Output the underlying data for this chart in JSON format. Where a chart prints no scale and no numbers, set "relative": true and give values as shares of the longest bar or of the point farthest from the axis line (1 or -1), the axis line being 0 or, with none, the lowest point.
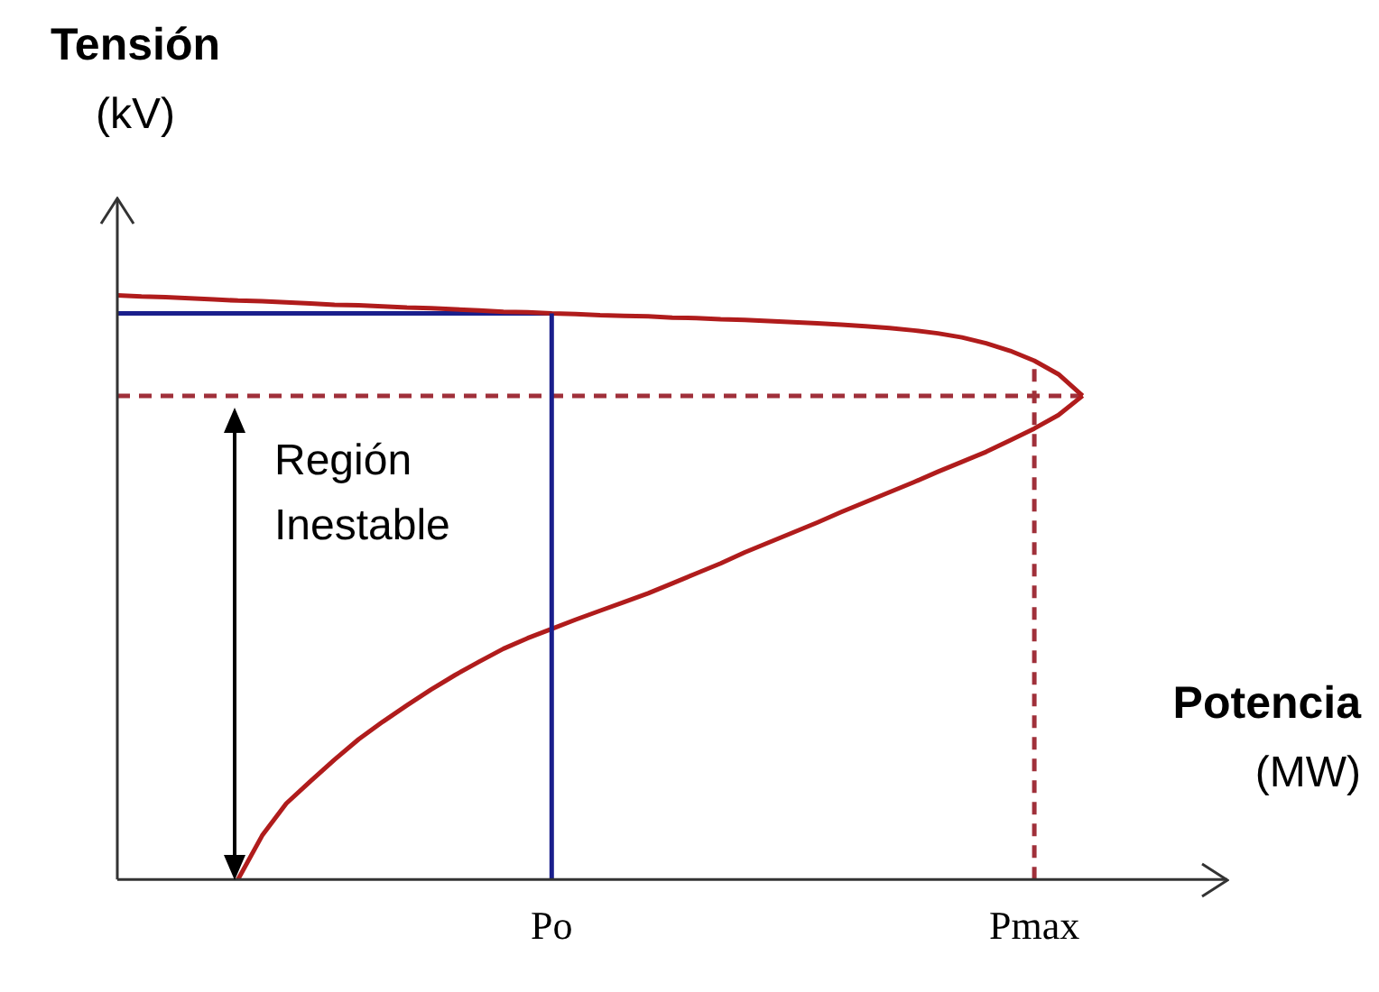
{
  "chart_data": {
    "type": "line",
    "relative": true,
    "ylabel": "Tensión\n(kV)",
    "xlabel": "Potencia\n(MW)",
    "annotations": [
      "Región\nInestable"
    ],
    "marker": "none",
    "categories": [
      null,
      null,
      null,
      null,
      null,
      null,
      null,
      null,
      null,
      null,
      null,
      null,
      null,
      null,
      null,
      null,
      null,
      null,
      "Po",
      null,
      null,
      null,
      null,
      null,
      null,
      null,
      null,
      null,
      null,
      null,
      null,
      null,
      null,
      null,
      null,
      null,
      null,
      null,
      "Pmax",
      null,
      null,
      null,
      null,
      null,
      null,
      null,
      null
    ],
    "ref_lines": [
      {
        "axis": "x",
        "value": "Po",
        "color": "#1a1f8c",
        "line_style": "solid"
      },
      {
        "axis": "x",
        "value": "Pmax",
        "color": "#a0303a",
        "line_style": "dashed"
      }
    ],
    "series": [
      {
        "color": "#b01c1c",
        "line_style": "solid",
        "values": [
          null,
          null,
          null,
          null,
          null,
          0,
          0.075,
          0.13,
          0.168,
          0.205,
          0.24,
          0.27,
          0.298,
          0.325,
          0.35,
          0.373,
          0.395,
          0.413,
          0.429,
          0.445,
          0.46,
          0.475,
          0.49,
          0.507,
          0.524,
          0.541,
          0.56,
          0.577,
          0.594,
          0.611,
          0.629,
          0.646,
          0.663,
          0.68,
          0.698,
          0.715,
          0.732,
          0.752,
          0.772,
          0.795,
          0.828,
          null,
          null,
          null,
          null,
          null,
          null
        ]
      },
      {
        "color": "#b01c1c",
        "line_style": "solid",
        "values": [
          1,
          0.998,
          0.997,
          0.995,
          0.993,
          0.991,
          0.99,
          0.988,
          0.986,
          0.984,
          0.983,
          0.981,
          0.979,
          0.978,
          0.976,
          0.974,
          0.972,
          0.971,
          0.969,
          0.968,
          0.966,
          0.965,
          0.964,
          0.962,
          0.961,
          0.959,
          0.958,
          0.956,
          0.954,
          0.952,
          0.95,
          0.947,
          0.944,
          0.94,
          0.935,
          0.928,
          0.918,
          0.905,
          0.888,
          0.865,
          0.828,
          null,
          null,
          null,
          null,
          null,
          null
        ]
      },
      {
        "color": "#1a1f8c",
        "line_style": "solid",
        "values": [
          0.969,
          0.969,
          0.969,
          0.969,
          0.969,
          0.969,
          0.969,
          0.969,
          0.969,
          0.969,
          0.969,
          0.969,
          0.969,
          0.969,
          0.969,
          0.969,
          0.969,
          0.969,
          0.969,
          null,
          null,
          null,
          null,
          null,
          null,
          null,
          null,
          null,
          null,
          null,
          null,
          null,
          null,
          null,
          null,
          null,
          null,
          null,
          null,
          null,
          null,
          null,
          null,
          null,
          null,
          null,
          null
        ]
      },
      {
        "color": "#a0303a",
        "line_style": "dashed",
        "values": [
          0.828,
          0.828,
          0.828,
          0.828,
          0.828,
          0.828,
          0.828,
          0.828,
          0.828,
          0.828,
          0.828,
          0.828,
          0.828,
          0.828,
          0.828,
          0.828,
          0.828,
          0.828,
          0.828,
          0.828,
          0.828,
          0.828,
          0.828,
          0.828,
          0.828,
          0.828,
          0.828,
          0.828,
          0.828,
          0.828,
          0.828,
          0.828,
          0.828,
          0.828,
          0.828,
          0.828,
          0.828,
          0.828,
          0.828,
          0.828,
          0.828,
          null,
          null,
          null,
          null,
          null,
          null
        ]
      }
    ]
  }
}
